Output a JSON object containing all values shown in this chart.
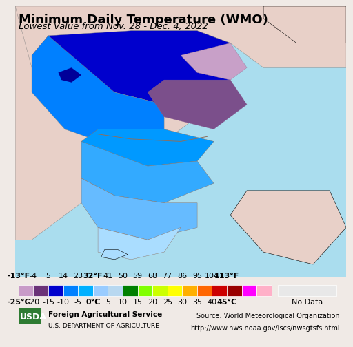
{
  "title": "Minimum Daily Temperature (WMO)",
  "subtitle": "Lowest Value from Nov. 28 - Dec. 4, 2022",
  "colorbar_colors": [
    "#C89BC8",
    "#6B3278",
    "#0000CD",
    "#0080FF",
    "#00B0FF",
    "#99CCFF",
    "#B8D8F0",
    "#008000",
    "#80FF00",
    "#CCFF00",
    "#FFFF00",
    "#FFB000",
    "#FF6600",
    "#CC0000",
    "#990000",
    "#FF00FF",
    "#FFB0C8"
  ],
  "fahrenheit_labels": [
    "-13°F",
    "-4",
    "5",
    "14",
    "23",
    "32°F",
    "41",
    "50",
    "59",
    "68",
    "77",
    "86",
    "95",
    "104",
    "113°F"
  ],
  "celsius_labels": [
    "-25°C",
    "-20",
    "-15",
    "-10",
    "-5",
    "0°C",
    "5",
    "10",
    "15",
    "20",
    "25",
    "30",
    "35",
    "40",
    "45°C"
  ],
  "no_data_color": "#E8E8E8",
  "background_ocean": "#AADDEE",
  "background_land": "#E8D0C8",
  "source_text": "Source: World Meteorological Organization\nhttp://www.nws.noaa.gov/iscs/nwsgtsfs.html",
  "usda_text": "Foreign Agricultural Service\nU.S. DEPARTMENT OF AGRICULTURE",
  "title_fontsize": 13,
  "subtitle_fontsize": 9.5,
  "colorbar_label_fontsize": 8,
  "footer_fontsize": 7.5
}
